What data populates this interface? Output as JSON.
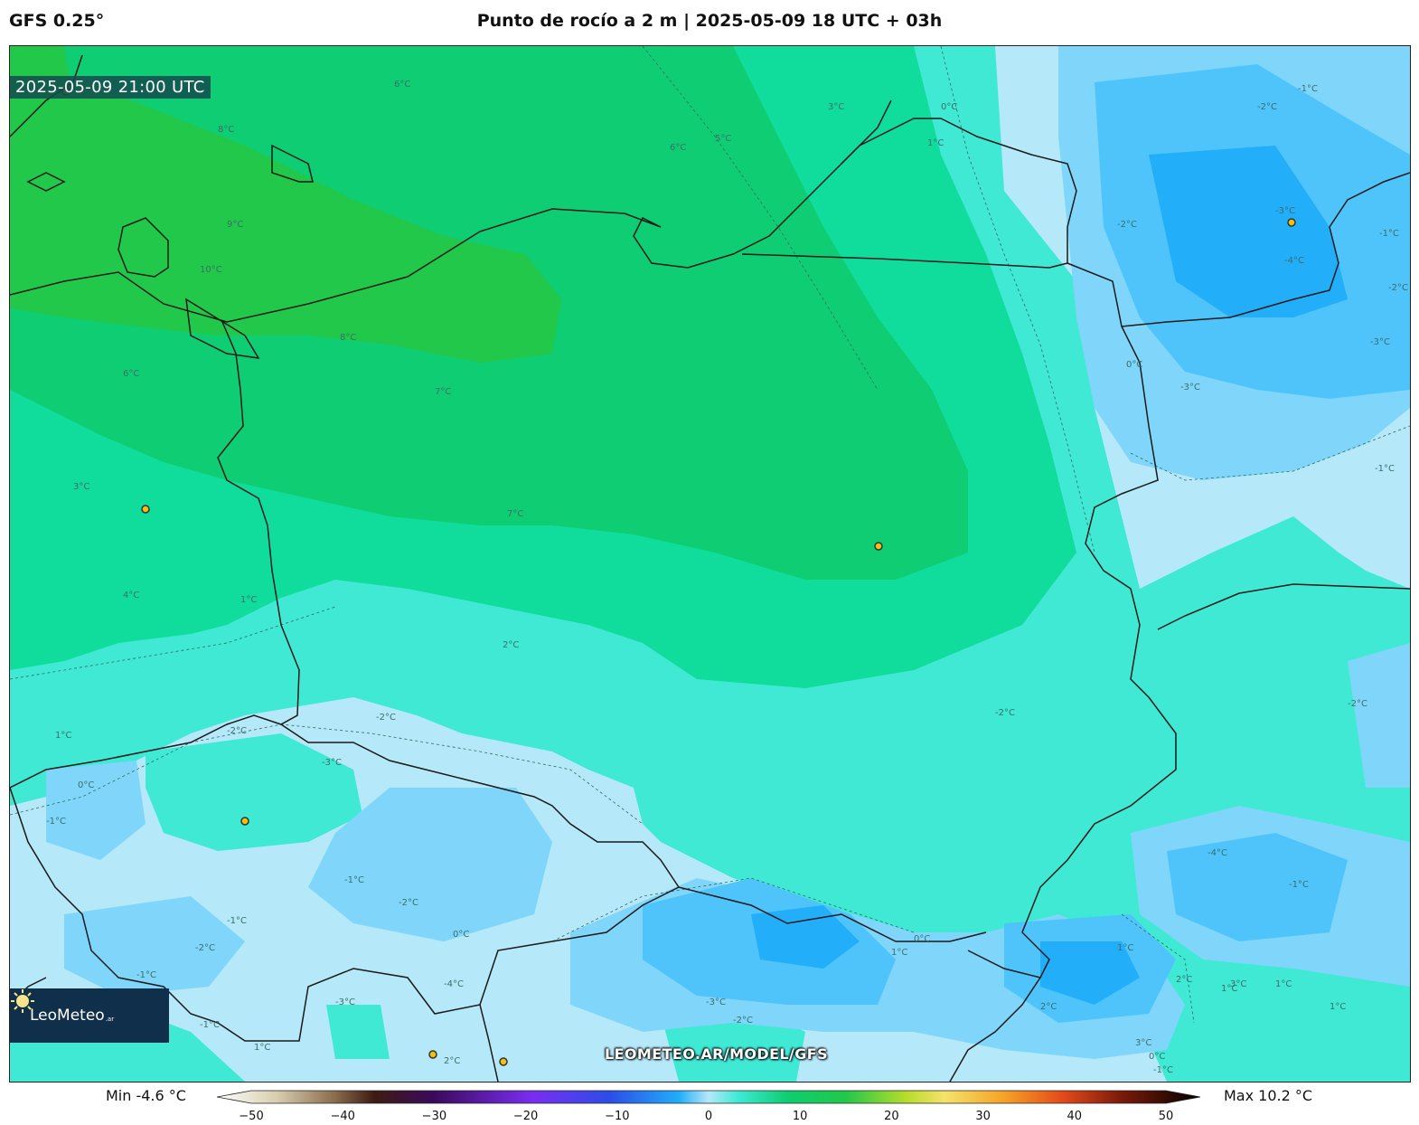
{
  "header": {
    "model": "GFS 0.25°",
    "title": "Punto de rocío a 2 m | 2025-05-09 18 UTC + 03h"
  },
  "map": {
    "timestamp": "2025-05-09 21:00 UTC",
    "watermark": "LEOMETEO.AR/MODEL/GFS",
    "logo_text": "LeoMeteo",
    "logo_tld": ".ar",
    "contour_labels": [
      "6°C",
      "8°C",
      "9°C",
      "10°C",
      "8°C",
      "6°C",
      "7°C",
      "3°C",
      "7°C",
      "4°C",
      "1°C",
      "2°C",
      "6°C",
      "5°C",
      "3°C",
      "0°C",
      "1°C",
      "-1°C",
      "-2°C",
      "-3°C",
      "-3°C",
      "-4°C",
      "-2°C",
      "-1°C",
      "-2°C",
      "-3°C",
      "-1°C",
      "0°C",
      "-2°C",
      "-4°C",
      "-1°C",
      "-2°C",
      "-2°C",
      "-3°C",
      "-2°C",
      "0°C",
      "-1°C",
      "1°C",
      "-1°C",
      "-2°C",
      "-1°C",
      "0°C",
      "-2°C",
      "-1°C",
      "-3°C",
      "-4°C",
      "1°C",
      "2°C",
      "-1°C",
      "-3°C",
      "-2°C",
      "0°C",
      "1°C",
      "2°C",
      "1°C",
      "2°C",
      "3°C",
      "1°C",
      "1°C",
      "3°C",
      "0°C",
      "-1°C",
      "1°C"
    ],
    "colors": {
      "warm_green": "#22c84a",
      "green": "#0ecd72",
      "teal": "#10dc9c",
      "aqua": "#3fe9d4",
      "light_blue": "#b5e8f8",
      "sky_blue": "#7fd6fa",
      "blue": "#4ec4fb",
      "deep_blue": "#22aef9",
      "station": "#f1c20f"
    }
  },
  "colorbar": {
    "min_label": "Min -4.6 °C",
    "max_label": "Max 10.2 °C",
    "ticks": [
      "−50",
      "−40",
      "−30",
      "−20",
      "−10",
      "0",
      "10",
      "20",
      "30",
      "40",
      "50"
    ],
    "range": [
      -50,
      50
    ]
  }
}
